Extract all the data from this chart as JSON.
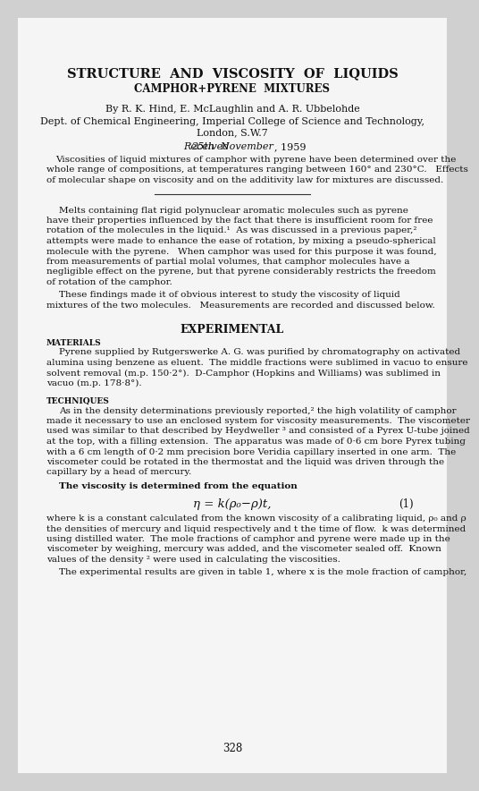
{
  "background_color": "#d0d0d0",
  "page_color": "#f5f5f5",
  "text_color": "#1a1a1a",
  "page_width": 5.0,
  "page_height": 8.64,
  "title": "STRUCTURE  AND  VISCOSITY  OF  LIQUIDS",
  "subtitle": "CAMPHOR+PYRENE  MIXTURES",
  "authors": "By R. K. Hind, E. McLaughlin and A. R. Ubbelohde",
  "affiliation1": "Dept. of Chemical Engineering, Imperial College of Science and Technology,",
  "affiliation2": "London, S.W.7",
  "received_plain": "Received ",
  "received_italic": "25th  November",
  "received_end": ", 1959",
  "abstract_lines": [
    "Viscosities of liquid mixtures of camphor with pyrene have been determined over the",
    "whole range of compositions, at temperatures ranging between 160° and 230°C.   Effects",
    "of molecular shape on viscosity and on the additivity law for mixtures are discussed."
  ],
  "para1_lines": [
    "Melts containing flat rigid polynuclear aromatic molecules such as pyrene",
    "have their properties influenced by the fact that there is insufficient room for free",
    "rotation of the molecules in the liquid.¹  As was discussed in a previous paper,²",
    "attempts were made to enhance the ease of rotation, by mixing a pseudo-spherical",
    "molecule with the pyrene.   When camphor was used for this purpose it was found,",
    "from measurements of partial molal volumes, that camphor molecules have a",
    "negligible effect on the pyrene, but that pyrene considerably restricts the freedom",
    "of rotation of the camphor."
  ],
  "para2_lines": [
    "These findings made it of obvious interest to study the viscosity of liquid",
    "mixtures of the two molecules.   Measurements are recorded and discussed below."
  ],
  "section_experimental": "EXPERIMENTAL",
  "label_materials": "MATERIALS",
  "para_materials_lines": [
    "Pyrene supplied by Rutgerswerke A. G. was purified by chromatography on activated",
    "alumina using benzene as eluent.  The middle fractions were sublimed in vacuo to ensure",
    "solvent removal (m.p. 150·2°).  D-Camphor (Hopkins and Williams) was sublimed in",
    "vacuo (m.p. 178·8°)."
  ],
  "para_materials_italic_ranges": [
    [
      1,
      "in vacuo"
    ],
    [
      2,
      "in"
    ],
    [
      3,
      "vacuo"
    ]
  ],
  "label_techniques": "TECHNIQUES",
  "para_techniques_lines": [
    "As in the density determinations previously reported,² the high volatility of camphor",
    "made it necessary to use an enclosed system for viscosity measurements.  The viscometer",
    "used was similar to that described by Heydweller ³ and consisted of a Pyrex U-tube joined",
    "at the top, with a filling extension.  The apparatus was made of 0·6 cm bore Pyrex tubing",
    "with a 6 cm length of 0·2 mm precision bore Veridia capillary inserted in one arm.  The",
    "viscometer could be rotated in the thermostat and the liquid was driven through the",
    "capillary by a head of mercury."
  ],
  "para_viscosity_intro": "The viscosity is determined from the equation",
  "equation": "η = k(ρ₀−ρ)t,",
  "equation_number": "(1)",
  "para_where_lines": [
    "where k is a constant calculated from the known viscosity of a calibrating liquid, ρ₀ and ρ",
    "the densities of mercury and liquid respectively and t the time of flow.  k was determined",
    "using distilled water.  The mole fractions of camphor and pyrene were made up in the",
    "viscometer by weighing, mercury was added, and the viscometer sealed off.  Known",
    "values of the density ² were used in calculating the viscosities."
  ],
  "para_results": "The experimental results are given in table 1, where x is the mole fraction of camphor,",
  "page_number": "328"
}
